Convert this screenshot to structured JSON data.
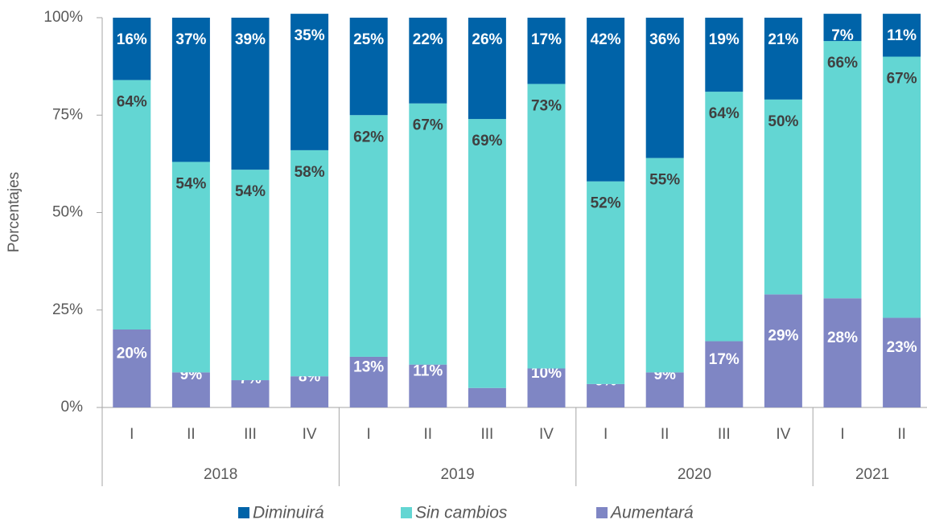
{
  "chart_data": {
    "type": "stacked_bar",
    "y_label": "Porcentajes",
    "category_groups": [
      {
        "name": "2018",
        "categories": [
          "I",
          "II",
          "III",
          "IV"
        ]
      },
      {
        "name": "2019",
        "categories": [
          "I",
          "II",
          "III",
          "IV"
        ]
      },
      {
        "name": "2020",
        "categories": [
          "I",
          "II",
          "III",
          "IV"
        ]
      },
      {
        "name": "2021",
        "categories": [
          "I",
          "II"
        ]
      }
    ],
    "series": [
      {
        "name": "Diminuirá",
        "color": "#0063a8",
        "label_color": "#ffffff",
        "values": [
          16,
          37,
          39,
          35,
          25,
          22,
          26,
          17,
          42,
          36,
          19,
          21,
          7,
          11
        ],
        "value_labels": [
          "16%",
          "37%",
          "39%",
          "35%",
          "25%",
          "22%",
          "26%",
          "17%",
          "42%",
          "36%",
          "19%",
          "21%",
          "7%",
          "11%"
        ]
      },
      {
        "name": "Sin cambios",
        "color": "#63d6d3",
        "label_color": "#404040",
        "values": [
          64,
          54,
          54,
          58,
          62,
          67,
          69,
          73,
          52,
          55,
          64,
          50,
          66,
          67
        ],
        "value_labels": [
          "64%",
          "54%",
          "54%",
          "58%",
          "62%",
          "67%",
          "69%",
          "73%",
          "52%",
          "55%",
          "64%",
          "50%",
          "66%",
          "67%"
        ]
      },
      {
        "name": "Aumentará",
        "color": "#7f86c4",
        "label_color": "#ffffff",
        "values": [
          20,
          9,
          7,
          8,
          13,
          11,
          5,
          10,
          6,
          9,
          17,
          29,
          28,
          23
        ],
        "value_labels": [
          "20%",
          "9%",
          "7%",
          "8%",
          "13%",
          "11%",
          "5%",
          "10%",
          "6%",
          "9%",
          "17%",
          "29%",
          "28%",
          "23%"
        ]
      }
    ],
    "ylim": [
      0,
      100
    ],
    "yticks": [
      {
        "value": 0,
        "label": "0%"
      },
      {
        "value": 25,
        "label": "25%"
      },
      {
        "value": 50,
        "label": "50%"
      },
      {
        "value": 75,
        "label": "75%"
      },
      {
        "value": 100,
        "label": "100%"
      }
    ],
    "legend": "bottom"
  }
}
